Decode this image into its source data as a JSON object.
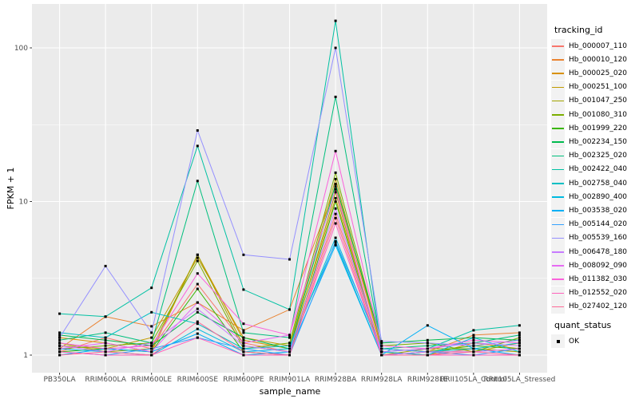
{
  "figure": {
    "background": "#FFFFFF",
    "panel_bg": "#EBEBEB",
    "grid_color": "#FFFFFF",
    "tick_color": "#333333",
    "tick_label_color": "#4D4D4D",
    "point_color": "#000000"
  },
  "legends": {
    "tracking": {
      "title": "tracking_id"
    },
    "quant": {
      "title": "quant_status",
      "items": [
        {
          "label": "OK",
          "marker": "black-square"
        }
      ]
    }
  },
  "chart_data": {
    "type": "line",
    "xlabel": "sample_name",
    "ylabel": "FPKM + 1",
    "y_scale": "log10",
    "y_ticks": [
      1,
      10,
      100
    ],
    "y_tick_labels": [
      "1",
      "10",
      "100"
    ],
    "y_minor": [
      3.1623,
      31.623
    ],
    "ylim": [
      0.77,
      193
    ],
    "grid": "on",
    "legend_position": "right",
    "point_marker": "black-square",
    "categories": [
      "PB350LA",
      "RRIM600LA",
      "RRIM600LE",
      "RRIM600SE",
      "RRIM600PE",
      "RRIM901LA",
      "RRIM928BA",
      "RRIM928LA",
      "RRIM928LE",
      "RRII105LA_Control",
      "RRII105LA_Stressed"
    ],
    "series": [
      {
        "name": "Hb_000007_110",
        "color": "#F8766D",
        "values": [
          1.05,
          1.3,
          1.1,
          2.9,
          1.2,
          1.05,
          8.3,
          1.05,
          1.0,
          1.1,
          1.05
        ]
      },
      {
        "name": "Hb_000010_120",
        "color": "#EA8331",
        "values": [
          1.1,
          1.78,
          1.54,
          2.2,
          1.45,
          1.98,
          12.5,
          1.1,
          1.05,
          1.35,
          1.4
        ]
      },
      {
        "name": "Hb_000025_020",
        "color": "#D89000",
        "values": [
          1.3,
          1.2,
          1.05,
          4.5,
          1.25,
          1.1,
          10.5,
          1.05,
          1.0,
          1.2,
          1.1
        ]
      },
      {
        "name": "Hb_000251_100",
        "color": "#C09B00",
        "values": [
          1.15,
          1.1,
          1.3,
          4.3,
          1.3,
          1.15,
          14.0,
          1.1,
          1.05,
          1.05,
          1.2
        ]
      },
      {
        "name": "Hb_001047_250",
        "color": "#A3A500",
        "values": [
          1.2,
          1.05,
          1.1,
          4.5,
          1.15,
          1.05,
          11.5,
          1.0,
          1.1,
          1.1,
          1.05
        ]
      },
      {
        "name": "Hb_001080_310",
        "color": "#7CAE00",
        "values": [
          1.1,
          1.15,
          1.2,
          4.1,
          1.1,
          1.2,
          15.4,
          1.15,
          1.2,
          1.05,
          1.3
        ]
      },
      {
        "name": "Hb_001999_220",
        "color": "#39B600",
        "values": [
          1.05,
          1.1,
          1.05,
          2.7,
          1.05,
          1.0,
          10.0,
          1.0,
          1.05,
          1.15,
          1.1
        ]
      },
      {
        "name": "Hb_002234_150",
        "color": "#00BB4E",
        "values": [
          1.35,
          1.25,
          1.15,
          1.9,
          1.3,
          1.1,
          13.0,
          1.2,
          1.25,
          1.3,
          1.25
        ]
      },
      {
        "name": "Hb_002325_020",
        "color": "#00BF7D",
        "values": [
          1.25,
          1.4,
          1.2,
          13.6,
          1.4,
          1.3,
          48,
          1.1,
          1.15,
          1.2,
          1.35
        ]
      },
      {
        "name": "Hb_002422_040",
        "color": "#00C1A3",
        "values": [
          1.86,
          1.78,
          2.74,
          23,
          2.67,
          1.98,
          150,
          1.05,
          1.1,
          1.45,
          1.56
        ]
      },
      {
        "name": "Hb_002758_040",
        "color": "#00BFC4",
        "values": [
          1.4,
          1.3,
          1.9,
          1.6,
          1.1,
          1.15,
          5.4,
          1.0,
          1.05,
          1.1,
          1.2
        ]
      },
      {
        "name": "Hb_002890_400",
        "color": "#00BAE0",
        "values": [
          1.1,
          1.05,
          1.0,
          1.48,
          1.05,
          1.1,
          5.8,
          1.05,
          1.0,
          1.3,
          1.05
        ]
      },
      {
        "name": "Hb_003538_020",
        "color": "#00B0F6",
        "values": [
          1.0,
          1.1,
          1.05,
          1.38,
          1.0,
          1.05,
          5.2,
          1.0,
          1.56,
          1.1,
          1.0
        ]
      },
      {
        "name": "Hb_005144_020",
        "color": "#35A2FF",
        "values": [
          1.05,
          1.0,
          1.1,
          1.3,
          1.1,
          1.0,
          5.5,
          1.1,
          1.05,
          1.0,
          1.1
        ]
      },
      {
        "name": "Hb_005539_160",
        "color": "#9590FF",
        "values": [
          1.3,
          3.8,
          1.4,
          29,
          4.5,
          4.2,
          100,
          1.23,
          1.2,
          1.15,
          1.25
        ]
      },
      {
        "name": "Hb_006478_180",
        "color": "#C77CFF",
        "values": [
          1.15,
          1.05,
          1.2,
          2.0,
          1.15,
          1.05,
          9.0,
          1.05,
          1.1,
          1.2,
          1.15
        ]
      },
      {
        "name": "Hb_008092_090",
        "color": "#E76BF3",
        "values": [
          1.1,
          1.2,
          1.05,
          2.2,
          1.2,
          1.35,
          12.0,
          1.0,
          1.05,
          1.05,
          1.1
        ]
      },
      {
        "name": "Hb_011382_030",
        "color": "#FA62DB",
        "values": [
          1.2,
          1.1,
          1.15,
          3.4,
          1.6,
          1.35,
          21.3,
          1.15,
          1.1,
          1.25,
          1.2
        ]
      },
      {
        "name": "Hb_012552_020",
        "color": "#FF62BC",
        "values": [
          1.05,
          1.0,
          1.0,
          1.3,
          1.0,
          1.0,
          7.2,
          1.0,
          1.0,
          1.0,
          1.0
        ]
      },
      {
        "name": "Hb_027402_120",
        "color": "#FF6A98",
        "values": [
          1.0,
          1.05,
          1.0,
          1.65,
          1.05,
          1.0,
          7.8,
          1.0,
          1.0,
          1.05,
          1.0
        ]
      }
    ]
  }
}
